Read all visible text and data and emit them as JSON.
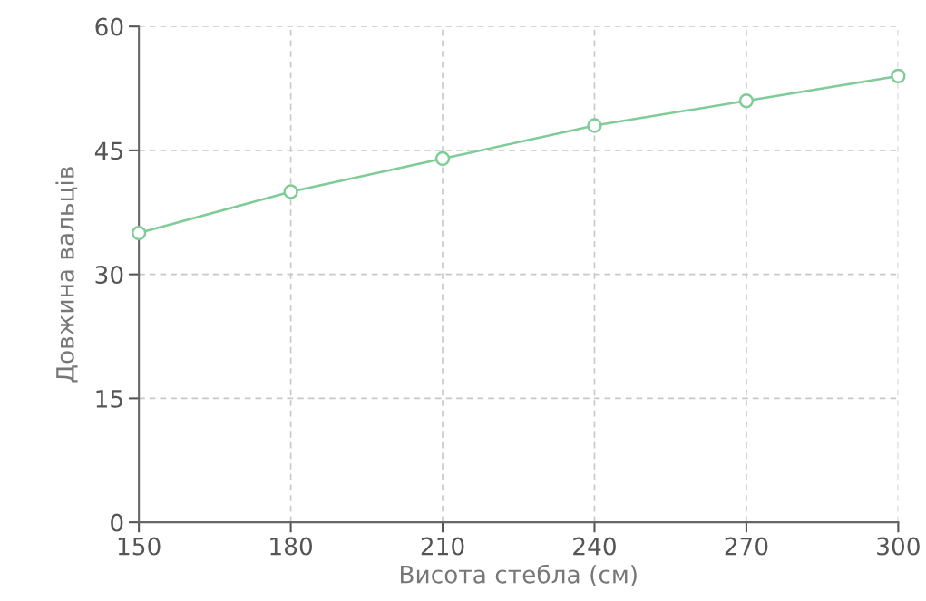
{
  "chart_data": {
    "type": "line",
    "xlabel": "Висота стебла (см)",
    "ylabel": "Довжина вальців",
    "x": [
      150,
      180,
      210,
      240,
      270,
      300
    ],
    "series": [
      {
        "color": "#7fcc98",
        "values": [
          35,
          40,
          44,
          48,
          51,
          54
        ]
      }
    ],
    "xlim": [
      150,
      300
    ],
    "xticks": [
      150,
      180,
      210,
      240,
      270,
      300
    ],
    "ylim": [
      0,
      60
    ],
    "yticks": [
      0,
      15,
      30,
      45,
      60
    ],
    "grid": true,
    "marker": "circle",
    "line_style": "solid"
  }
}
